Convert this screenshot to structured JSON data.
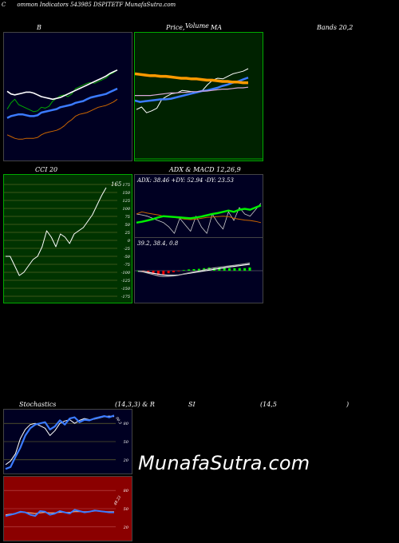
{
  "header": {
    "title": "Common Indicators 543985 DSPITETF MunafaSutra.com",
    "c_letter": "C",
    "rest": "ommon  Indicators 543985 DSPITETF MunafaSutra.com"
  },
  "labels": {
    "bb": "B",
    "price": "Price,",
    "volume": "Volume",
    "ma": "MA",
    "bands": "Bands 20,2",
    "cci": "CCI 20",
    "adx_macd": "ADX  & MACD 12,26,9",
    "stoch": "Stochastics",
    "stoch_params": "(14,3,3) & R",
    "si": "SI",
    "rsi_params": "(14,5",
    "close_paren": ")"
  },
  "watermark": "MunafaSutra.com",
  "colors": {
    "navy_bg": "#000022",
    "green_bg": "#002200",
    "olive_bg": "#003300",
    "red_bg": "#8b0000",
    "price_line": "#ffffff",
    "ma_blue": "#3b7bff",
    "bb_orange": "#cc6600",
    "bb_green": "#00aa00",
    "ma_orange": "#ff9900",
    "adx_green": "#00ee00"
  },
  "chart_data": [
    {
      "type": "line",
      "name": "bollinger-bands",
      "series": [
        {
          "values": [
            0.55,
            0.62,
            0.66,
            0.6,
            0.58,
            0.56,
            0.54,
            0.52,
            0.53,
            0.57,
            0.56,
            0.58,
            0.64,
            0.67,
            0.7,
            0.71,
            0.69,
            0.72,
            0.78,
            0.8,
            0.82,
            0.84,
            0.85,
            0.84,
            0.86,
            0.88,
            0.9,
            0.94,
            0.96,
            0.99
          ]
        },
        {
          "values": [
            0.45,
            0.47,
            0.48,
            0.49,
            0.49,
            0.48,
            0.47,
            0.47,
            0.48,
            0.51,
            0.52,
            0.53,
            0.54,
            0.55,
            0.57,
            0.58,
            0.59,
            0.6,
            0.62,
            0.63,
            0.64,
            0.66,
            0.68,
            0.69,
            0.7,
            0.71,
            0.72,
            0.74,
            0.76,
            0.78
          ]
        },
        {
          "values": [
            0.26,
            0.24,
            0.22,
            0.21,
            0.21,
            0.22,
            0.22,
            0.22,
            0.23,
            0.26,
            0.28,
            0.29,
            0.3,
            0.31,
            0.33,
            0.36,
            0.4,
            0.43,
            0.47,
            0.49,
            0.5,
            0.51,
            0.53,
            0.55,
            0.57,
            0.58,
            0.59,
            0.61,
            0.63,
            0.66
          ]
        },
        {
          "values": [
            0.75,
            0.72,
            0.71,
            0.72,
            0.73,
            0.74,
            0.74,
            0.73,
            0.71,
            0.69,
            0.68,
            0.67,
            0.66,
            0.67,
            0.68,
            0.7,
            0.72,
            0.74,
            0.76,
            0.78,
            0.8,
            0.82,
            0.84,
            0.86,
            0.88,
            0.9,
            0.92,
            0.95,
            0.97,
            0.99
          ]
        }
      ]
    },
    {
      "type": "line",
      "name": "price-volume-ma",
      "series": [
        {
          "values": [
            0.36,
            0.4,
            0.31,
            0.34,
            0.38,
            0.52,
            0.57,
            0.61,
            0.62,
            0.66,
            0.65,
            0.64,
            0.63,
            0.66,
            0.75,
            0.82,
            0.85,
            0.84,
            0.88,
            0.92,
            0.94,
            0.96,
            1.0
          ]
        },
        {
          "values": [
            0.5,
            0.48,
            0.49,
            0.5,
            0.51,
            0.52,
            0.52,
            0.53,
            0.55,
            0.57,
            0.59,
            0.61,
            0.63,
            0.65,
            0.66,
            0.68,
            0.7,
            0.73,
            0.75,
            0.78,
            0.8,
            0.83,
            0.86
          ]
        },
        {
          "values": [
            0.92,
            0.91,
            0.9,
            0.89,
            0.89,
            0.88,
            0.88,
            0.87,
            0.86,
            0.85,
            0.85,
            0.84,
            0.84,
            0.83,
            0.82,
            0.82,
            0.81,
            0.8,
            0.8,
            0.79,
            0.79,
            0.78,
            0.78
          ]
        },
        {
          "values": [
            0.58,
            0.58,
            0.58,
            0.58,
            0.59,
            0.6,
            0.61,
            0.62,
            0.62,
            0.63,
            0.63,
            0.64,
            0.64,
            0.65,
            0.65,
            0.66,
            0.67,
            0.68,
            0.68,
            0.69,
            0.7,
            0.7,
            0.71
          ]
        }
      ]
    },
    {
      "type": "line",
      "name": "cci",
      "label": "165",
      "yticks": [
        "175",
        "150",
        "125",
        "100",
        "75",
        "50",
        "25",
        "0",
        "-25",
        "-50",
        "-75",
        "-100",
        "-125",
        "-150",
        "-175"
      ],
      "ylim": [
        -175,
        175
      ],
      "values": [
        -50,
        -50,
        -80,
        -110,
        -100,
        -80,
        -60,
        -50,
        -20,
        30,
        10,
        -20,
        20,
        10,
        -10,
        20,
        30,
        40,
        60,
        80,
        110,
        140,
        165
      ]
    },
    {
      "type": "line",
      "name": "adx",
      "label": "ADX: 38.46  +DY: 52.94  -DY: 23.53",
      "series": [
        {
          "values": [
            0.3,
            0.32,
            0.35,
            0.38,
            0.42,
            0.45,
            0.44,
            0.43,
            0.42,
            0.41,
            0.4,
            0.42,
            0.44,
            0.47,
            0.5,
            0.52,
            0.55,
            0.58,
            0.55,
            0.6,
            0.62,
            0.6,
            0.65,
            0.7
          ]
        },
        {
          "values": [
            0.5,
            0.55,
            0.52,
            0.5,
            0.48,
            0.45,
            0.43,
            0.42,
            0.4,
            0.38,
            0.37,
            0.38,
            0.4,
            0.42,
            0.43,
            0.44,
            0.45,
            0.44,
            0.4,
            0.38,
            0.36,
            0.35,
            0.33,
            0.3
          ]
        },
        {
          "values": [
            0.5,
            0.48,
            0.45,
            0.4,
            0.35,
            0.3,
            0.2,
            0.05,
            0.4,
            0.25,
            0.1,
            0.45,
            0.2,
            0.05,
            0.5,
            0.3,
            0.15,
            0.55,
            0.35,
            0.65,
            0.5,
            0.45,
            0.6,
            0.75
          ]
        }
      ]
    },
    {
      "type": "line",
      "name": "macd",
      "label": "39.2,  38.4,  0.8",
      "series": [
        {
          "values": [
            0.1,
            0.05,
            -0.05,
            -0.15,
            -0.25,
            -0.3,
            -0.28,
            -0.25,
            -0.2,
            -0.1,
            -0.02,
            0.05,
            0.12,
            0.2,
            0.28,
            0.35,
            0.4,
            0.45,
            0.5,
            0.55,
            0.6,
            0.65,
            0.72
          ]
        },
        {
          "values": [
            0.1,
            0.08,
            0.02,
            -0.05,
            -0.12,
            -0.18,
            -0.2,
            -0.2,
            -0.18,
            -0.12,
            -0.06,
            0.0,
            0.06,
            0.12,
            0.18,
            0.25,
            0.3,
            0.36,
            0.42,
            0.47,
            0.52,
            0.57,
            0.62
          ]
        }
      ]
    },
    {
      "type": "line",
      "name": "stochastics",
      "label": "90.3",
      "yticks": [
        "80",
        "50",
        "20"
      ],
      "ylim": [
        0,
        100
      ],
      "series": [
        {
          "values": [
            5,
            8,
            25,
            40,
            60,
            72,
            78,
            80,
            82,
            70,
            75,
            85,
            78,
            88,
            90,
            82,
            86,
            85,
            88,
            90,
            92,
            90,
            93
          ]
        },
        {
          "values": [
            12,
            18,
            30,
            55,
            70,
            78,
            80,
            76,
            72,
            60,
            68,
            80,
            84,
            86,
            80,
            85,
            88,
            86,
            87,
            89,
            91,
            92,
            91
          ]
        }
      ]
    },
    {
      "type": "line",
      "name": "rsi",
      "label": "48.23",
      "yticks": [
        "80",
        "50",
        "20"
      ],
      "ylim": [
        0,
        100
      ],
      "series": [
        {
          "values": [
            38,
            40,
            42,
            45,
            44,
            40,
            38,
            46,
            45,
            40,
            42,
            46,
            44,
            42,
            48,
            46,
            44,
            45,
            47,
            46,
            45,
            44,
            44
          ]
        },
        {
          "values": [
            40,
            41,
            42,
            44,
            44,
            43,
            42,
            43,
            44,
            43,
            43,
            44,
            44,
            44,
            45,
            45,
            45,
            45,
            46,
            46,
            45,
            45,
            45
          ]
        }
      ]
    }
  ]
}
